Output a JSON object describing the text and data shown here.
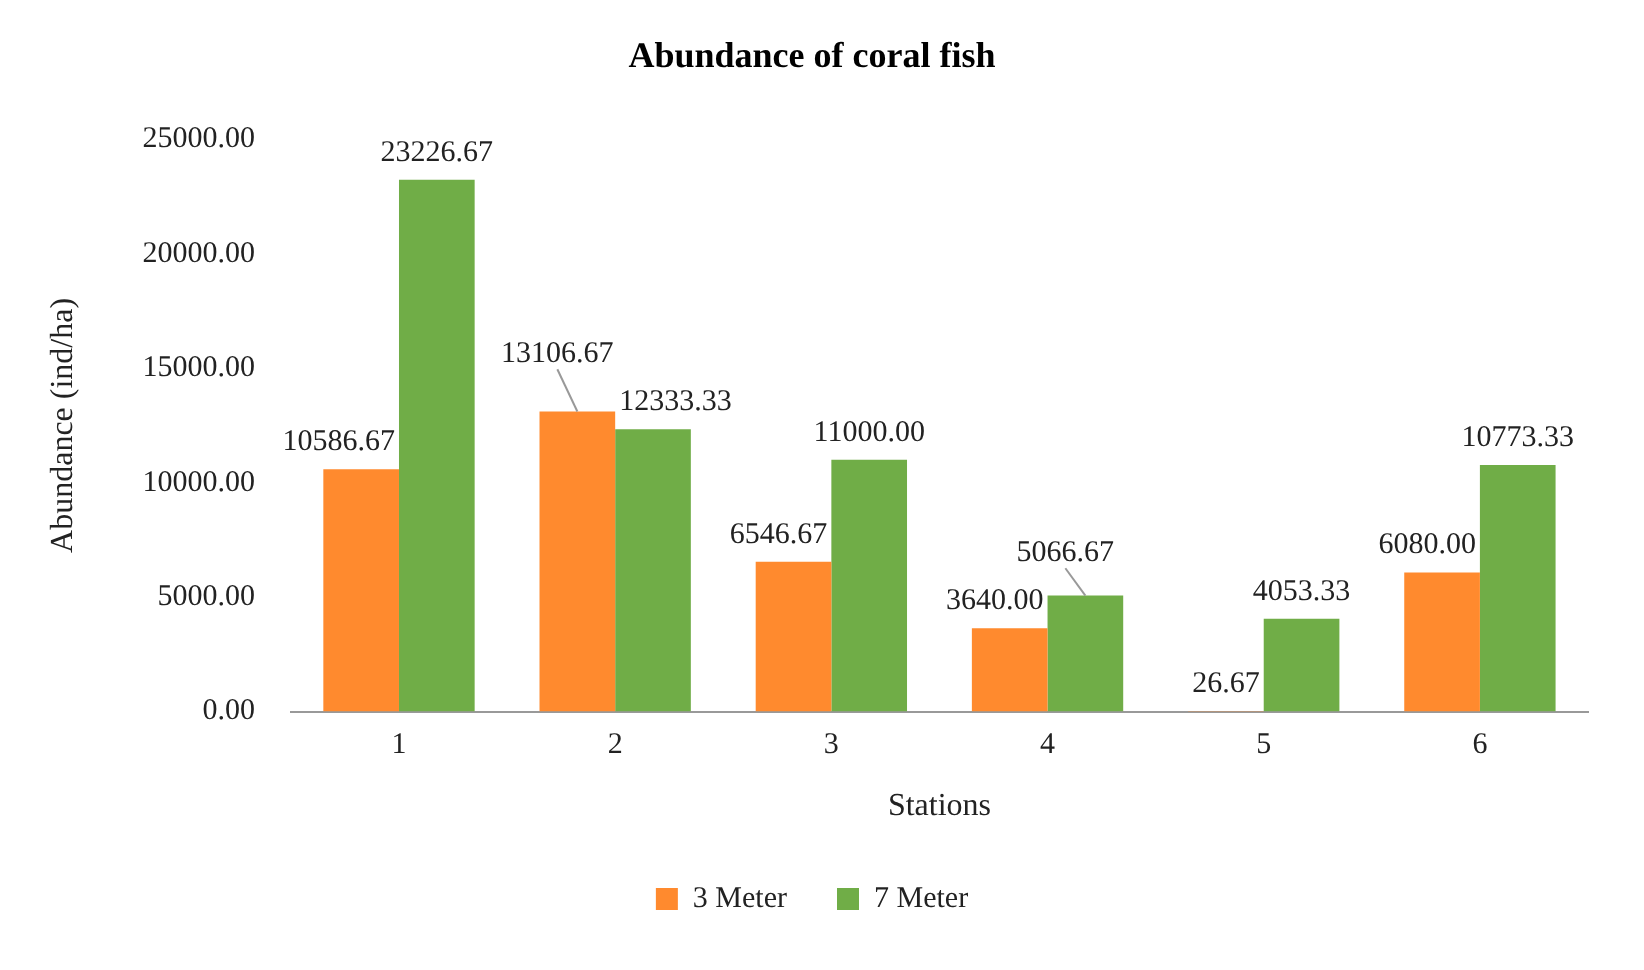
{
  "chart_data": {
    "type": "bar",
    "title": "Abundance of coral fish",
    "xlabel": "Stations",
    "ylabel": "Abundance (ind/ha)",
    "categories": [
      "1",
      "2",
      "3",
      "4",
      "5",
      "6"
    ],
    "series": [
      {
        "name": "3 Meter",
        "color": "#ff8a2e",
        "values": [
          10586.67,
          13106.67,
          6546.67,
          3640.0,
          26.67,
          6080.0
        ],
        "value_labels": [
          "10586.67",
          "13106.67",
          "6546.67",
          "3640.00",
          "26.67",
          "6080.00"
        ]
      },
      {
        "name": "7 Meter",
        "color": "#70ad47",
        "values": [
          23226.67,
          12333.33,
          11000.0,
          5066.67,
          4053.33,
          10773.33
        ],
        "value_labels": [
          "23226.67",
          "12333.33",
          "11000.00",
          "5066.67",
          "4053.33",
          "10773.33"
        ]
      }
    ],
    "ylim": [
      0,
      25000
    ],
    "yticks": [
      {
        "value": 0,
        "label": "0.00"
      },
      {
        "value": 5000,
        "label": "5000.00"
      },
      {
        "value": 10000,
        "label": "10000.00"
      },
      {
        "value": 15000,
        "label": "15000.00"
      },
      {
        "value": 20000,
        "label": "20000.00"
      },
      {
        "value": 25000,
        "label": "25000.00"
      }
    ],
    "grid": false,
    "legend": "bottom"
  }
}
